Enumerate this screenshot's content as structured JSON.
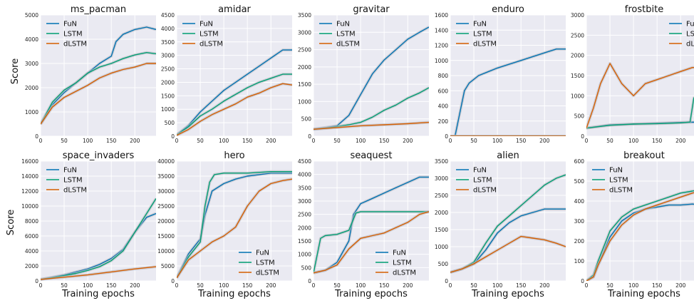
{
  "figure": {
    "ylabel": "Score",
    "xlabel": "Training epochs",
    "series_names": [
      "FuN",
      "LSTM",
      "dLSTM"
    ],
    "colors": {
      "FuN": "#0072b2",
      "LSTM": "#009e73",
      "dLSTM": "#d55e00",
      "background": "#eaeaf2",
      "grid": "#ffffff",
      "band": "#b9b9c2"
    }
  },
  "chart_data": [
    {
      "type": "line",
      "title": "ms_pacman",
      "xlim": [
        0,
        245
      ],
      "ylim": [
        0,
        5000
      ],
      "xticks": [
        0,
        50,
        100,
        150,
        200
      ],
      "yticks": [
        0,
        1000,
        2000,
        3000,
        4000,
        5000
      ],
      "legend": "top-left",
      "series": [
        {
          "name": "FuN",
          "x": [
            0,
            25,
            50,
            75,
            100,
            125,
            150,
            160,
            175,
            200,
            225,
            245
          ],
          "y": [
            500,
            1300,
            1800,
            2200,
            2600,
            3000,
            3300,
            3900,
            4200,
            4400,
            4500,
            4400
          ]
        },
        {
          "name": "LSTM",
          "x": [
            0,
            25,
            50,
            75,
            100,
            125,
            150,
            175,
            200,
            225,
            245
          ],
          "y": [
            500,
            1400,
            1900,
            2200,
            2600,
            2850,
            3000,
            3200,
            3350,
            3450,
            3400
          ]
        },
        {
          "name": "dLSTM",
          "x": [
            0,
            25,
            50,
            75,
            100,
            125,
            150,
            175,
            200,
            225,
            245
          ],
          "y": [
            500,
            1200,
            1600,
            1850,
            2100,
            2400,
            2600,
            2750,
            2850,
            3000,
            3000
          ]
        }
      ]
    },
    {
      "type": "line",
      "title": "amidar",
      "xlim": [
        0,
        245
      ],
      "ylim": [
        0,
        4500
      ],
      "xticks": [
        0,
        50,
        100,
        150,
        200
      ],
      "yticks": [
        0,
        500,
        1000,
        1500,
        2000,
        2500,
        3000,
        3500,
        4000,
        4500
      ],
      "legend": "top-left",
      "series": [
        {
          "name": "FuN",
          "x": [
            0,
            25,
            50,
            75,
            100,
            125,
            150,
            175,
            200,
            225,
            245
          ],
          "y": [
            50,
            400,
            900,
            1300,
            1700,
            2000,
            2300,
            2600,
            2900,
            3200,
            3200
          ]
        },
        {
          "name": "LSTM",
          "x": [
            0,
            25,
            50,
            75,
            100,
            125,
            150,
            175,
            200,
            225,
            245
          ],
          "y": [
            50,
            350,
            750,
            1000,
            1300,
            1550,
            1800,
            2000,
            2150,
            2300,
            2300
          ]
        },
        {
          "name": "dLSTM",
          "x": [
            0,
            25,
            50,
            75,
            100,
            125,
            150,
            175,
            200,
            225,
            245
          ],
          "y": [
            30,
            250,
            550,
            800,
            1000,
            1200,
            1450,
            1600,
            1800,
            1950,
            1900
          ]
        }
      ]
    },
    {
      "type": "line",
      "title": "gravitar",
      "xlim": [
        0,
        245
      ],
      "ylim": [
        0,
        3500
      ],
      "xticks": [
        0,
        50,
        100,
        150,
        200
      ],
      "yticks": [
        0,
        500,
        1000,
        1500,
        2000,
        2500,
        3000,
        3500
      ],
      "legend": "top-left",
      "series": [
        {
          "name": "FuN",
          "x": [
            0,
            25,
            50,
            75,
            100,
            125,
            150,
            175,
            200,
            225,
            245
          ],
          "y": [
            200,
            250,
            300,
            600,
            1200,
            1800,
            2200,
            2500,
            2800,
            3000,
            3150
          ]
        },
        {
          "name": "LSTM",
          "x": [
            0,
            25,
            50,
            75,
            100,
            125,
            150,
            175,
            200,
            225,
            245
          ],
          "y": [
            200,
            230,
            280,
            330,
            400,
            550,
            750,
            900,
            1100,
            1250,
            1400
          ]
        },
        {
          "name": "dLSTM",
          "x": [
            0,
            50,
            100,
            150,
            200,
            245
          ],
          "y": [
            200,
            250,
            300,
            330,
            360,
            400
          ]
        }
      ]
    },
    {
      "type": "line",
      "title": "enduro",
      "xlim": [
        0,
        245
      ],
      "ylim": [
        0,
        1600
      ],
      "xticks": [
        0,
        50,
        100,
        150,
        200
      ],
      "yticks": [
        0,
        200,
        400,
        600,
        800,
        1000,
        1200,
        1400,
        1600
      ],
      "legend": "top-left",
      "series": [
        {
          "name": "FuN",
          "x": [
            0,
            10,
            20,
            30,
            40,
            60,
            80,
            100,
            125,
            150,
            175,
            200,
            225,
            245
          ],
          "y": [
            0,
            0,
            300,
            600,
            700,
            800,
            850,
            900,
            950,
            1000,
            1050,
            1100,
            1150,
            1150
          ]
        },
        {
          "name": "LSTM",
          "x": [
            0,
            245
          ],
          "y": [
            0,
            0
          ]
        },
        {
          "name": "dLSTM",
          "x": [
            0,
            245
          ],
          "y": [
            0,
            0
          ]
        }
      ]
    },
    {
      "type": "line",
      "title": "frostbite",
      "xlim": [
        0,
        245
      ],
      "ylim": [
        0,
        3000
      ],
      "xticks": [
        0,
        50,
        100,
        150,
        200
      ],
      "yticks": [
        0,
        500,
        1000,
        1500,
        2000,
        2500,
        3000
      ],
      "legend": "top-right",
      "series": [
        {
          "name": "FuN",
          "x": [
            0,
            50,
            100,
            150,
            200,
            245
          ],
          "y": [
            200,
            280,
            300,
            320,
            340,
            350
          ]
        },
        {
          "name": "LSTM",
          "x": [
            0,
            50,
            100,
            150,
            200,
            220,
            228,
            245
          ],
          "y": [
            200,
            270,
            300,
            310,
            330,
            350,
            950,
            1000
          ]
        },
        {
          "name": "dLSTM",
          "x": [
            0,
            15,
            30,
            50,
            75,
            100,
            125,
            150,
            175,
            200,
            225,
            245
          ],
          "y": [
            200,
            700,
            1300,
            1800,
            1300,
            1000,
            1300,
            1400,
            1500,
            1600,
            1700,
            1700
          ]
        }
      ]
    },
    {
      "type": "line",
      "title": "space_invaders",
      "xlim": [
        0,
        245
      ],
      "ylim": [
        0,
        16000
      ],
      "xticks": [
        0,
        50,
        100,
        150,
        200
      ],
      "yticks": [
        0,
        2000,
        4000,
        6000,
        8000,
        10000,
        12000,
        14000,
        16000
      ],
      "legend": "top-left",
      "series": [
        {
          "name": "FuN",
          "x": [
            0,
            25,
            50,
            75,
            100,
            125,
            150,
            175,
            200,
            225,
            245
          ],
          "y": [
            200,
            500,
            800,
            1200,
            1600,
            2200,
            3000,
            4200,
            6500,
            8500,
            9000
          ]
        },
        {
          "name": "LSTM",
          "x": [
            0,
            25,
            50,
            75,
            100,
            125,
            150,
            175,
            200,
            225,
            245
          ],
          "y": [
            200,
            450,
            700,
            1000,
            1400,
            1900,
            2700,
            4000,
            6500,
            9000,
            11000
          ]
        },
        {
          "name": "dLSTM",
          "x": [
            0,
            50,
            100,
            150,
            200,
            245
          ],
          "y": [
            200,
            500,
            800,
            1200,
            1600,
            1900
          ]
        }
      ]
    },
    {
      "type": "line",
      "title": "hero",
      "xlim": [
        0,
        245
      ],
      "ylim": [
        0,
        40000
      ],
      "xticks": [
        0,
        50,
        100,
        150,
        200
      ],
      "yticks": [
        0,
        5000,
        10000,
        15000,
        20000,
        25000,
        30000,
        35000,
        40000
      ],
      "legend": "bottom-right",
      "series": [
        {
          "name": "FuN",
          "x": [
            0,
            25,
            50,
            60,
            75,
            100,
            125,
            150,
            175,
            200,
            225,
            245
          ],
          "y": [
            1000,
            9000,
            14000,
            22000,
            30000,
            32500,
            34000,
            35000,
            35500,
            36000,
            36000,
            36000
          ]
        },
        {
          "name": "LSTM",
          "x": [
            0,
            25,
            50,
            60,
            70,
            80,
            100,
            150,
            200,
            245
          ],
          "y": [
            1000,
            8000,
            13000,
            25000,
            33000,
            35500,
            36000,
            36000,
            36500,
            36500
          ]
        },
        {
          "name": "dLSTM",
          "x": [
            0,
            25,
            50,
            75,
            100,
            125,
            150,
            175,
            200,
            225,
            245
          ],
          "y": [
            1000,
            7000,
            10000,
            13000,
            15000,
            18000,
            25000,
            30000,
            32500,
            33500,
            34000
          ]
        }
      ]
    },
    {
      "type": "line",
      "title": "seaquest",
      "xlim": [
        0,
        245
      ],
      "ylim": [
        0,
        4500
      ],
      "xticks": [
        0,
        50,
        100,
        150,
        200
      ],
      "yticks": [
        0,
        500,
        1000,
        1500,
        2000,
        2500,
        3000,
        3500,
        4000,
        4500
      ],
      "legend": "bottom-right",
      "series": [
        {
          "name": "FuN",
          "x": [
            0,
            25,
            50,
            75,
            85,
            100,
            125,
            150,
            175,
            200,
            225,
            245
          ],
          "y": [
            300,
            400,
            700,
            1500,
            2500,
            2900,
            3100,
            3300,
            3500,
            3700,
            3900,
            3900
          ]
        },
        {
          "name": "LSTM",
          "x": [
            0,
            15,
            25,
            50,
            75,
            90,
            100,
            150,
            200,
            245
          ],
          "y": [
            300,
            1600,
            1700,
            1750,
            1900,
            2550,
            2600,
            2600,
            2600,
            2600
          ]
        },
        {
          "name": "dLSTM",
          "x": [
            0,
            25,
            50,
            75,
            100,
            125,
            150,
            175,
            200,
            225,
            245
          ],
          "y": [
            300,
            400,
            600,
            1200,
            1600,
            1700,
            1800,
            2000,
            2200,
            2500,
            2600
          ]
        }
      ]
    },
    {
      "type": "line",
      "title": "alien",
      "xlim": [
        0,
        245
      ],
      "ylim": [
        0,
        3500
      ],
      "xticks": [
        0,
        50,
        100,
        150,
        200
      ],
      "yticks": [
        0,
        500,
        1000,
        1500,
        2000,
        2500,
        3000,
        3500
      ],
      "legend": "top-left",
      "series": [
        {
          "name": "FuN",
          "x": [
            0,
            25,
            50,
            75,
            100,
            125,
            150,
            175,
            200,
            225,
            245
          ],
          "y": [
            250,
            350,
            500,
            900,
            1400,
            1700,
            1900,
            2000,
            2100,
            2100,
            2100
          ]
        },
        {
          "name": "LSTM",
          "x": [
            0,
            25,
            50,
            75,
            100,
            125,
            150,
            175,
            200,
            225,
            245
          ],
          "y": [
            250,
            350,
            550,
            1100,
            1600,
            1900,
            2200,
            2500,
            2800,
            3000,
            3100
          ]
        },
        {
          "name": "dLSTM",
          "x": [
            0,
            25,
            50,
            75,
            100,
            125,
            150,
            175,
            200,
            225,
            245
          ],
          "y": [
            250,
            350,
            500,
            700,
            900,
            1100,
            1300,
            1250,
            1200,
            1100,
            1000
          ]
        }
      ]
    },
    {
      "type": "line",
      "title": "breakout",
      "xlim": [
        0,
        245
      ],
      "ylim": [
        0,
        600
      ],
      "xticks": [
        0,
        50,
        100,
        150,
        200
      ],
      "yticks": [
        0,
        100,
        200,
        300,
        400,
        500,
        600
      ],
      "legend": "top-left",
      "series": [
        {
          "name": "FuN",
          "x": [
            0,
            15,
            25,
            50,
            75,
            100,
            125,
            150,
            175,
            200,
            225,
            245
          ],
          "y": [
            0,
            20,
            80,
            220,
            300,
            340,
            360,
            370,
            380,
            380,
            385,
            380
          ]
        },
        {
          "name": "LSTM",
          "x": [
            0,
            15,
            25,
            50,
            75,
            100,
            125,
            150,
            175,
            200,
            225,
            245
          ],
          "y": [
            0,
            30,
            100,
            250,
            320,
            360,
            380,
            400,
            420,
            440,
            450,
            460
          ]
        },
        {
          "name": "dLSTM",
          "x": [
            0,
            15,
            25,
            50,
            75,
            100,
            125,
            150,
            175,
            200,
            225,
            245
          ],
          "y": [
            0,
            20,
            80,
            200,
            280,
            330,
            360,
            380,
            400,
            420,
            440,
            450
          ]
        }
      ]
    }
  ]
}
